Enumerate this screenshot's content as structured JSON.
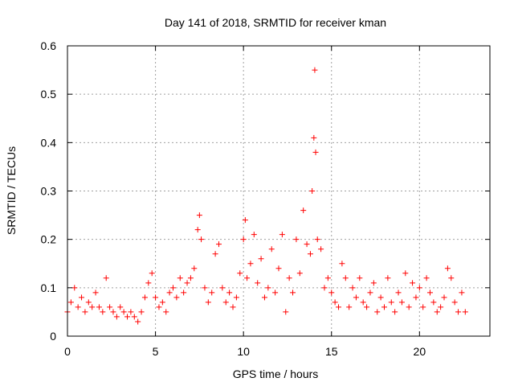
{
  "chart_data": {
    "type": "scatter",
    "title": "Day 141 of 2018, SRMTID for receiver kman",
    "xlabel": "GPS time / hours",
    "ylabel": "SRMTID / TECUs",
    "xlim": [
      0,
      24
    ],
    "ylim": [
      0,
      0.6
    ],
    "x_ticks": [
      "0",
      "5",
      "10",
      "15",
      "20"
    ],
    "x_tick_values": [
      0,
      5,
      10,
      15,
      20
    ],
    "y_ticks": [
      "0",
      "0.1",
      "0.2",
      "0.3",
      "0.4",
      "0.5",
      "0.6"
    ],
    "y_tick_values": [
      0,
      0.1,
      0.2,
      0.3,
      0.4,
      0.5,
      0.6
    ],
    "grid": true,
    "marker": "+",
    "marker_color": "#ff0000",
    "series": [
      {
        "name": "SRMTID",
        "x": [
          0.0,
          0.2,
          0.4,
          0.6,
          0.8,
          1.0,
          1.2,
          1.4,
          1.6,
          1.8,
          2.0,
          2.2,
          2.4,
          2.6,
          2.8,
          3.0,
          3.2,
          3.4,
          3.6,
          3.8,
          4.0,
          4.2,
          4.4,
          4.6,
          4.8,
          5.0,
          5.2,
          5.4,
          5.6,
          5.8,
          6.0,
          6.2,
          6.4,
          6.6,
          6.8,
          7.0,
          7.2,
          7.4,
          7.5,
          7.6,
          7.8,
          8.0,
          8.2,
          8.4,
          8.6,
          8.8,
          9.0,
          9.2,
          9.4,
          9.6,
          9.8,
          10.0,
          10.1,
          10.2,
          10.4,
          10.6,
          10.8,
          11.0,
          11.2,
          11.4,
          11.6,
          11.8,
          12.0,
          12.2,
          12.4,
          12.6,
          12.8,
          13.0,
          13.2,
          13.4,
          13.6,
          13.8,
          13.9,
          14.0,
          14.05,
          14.1,
          14.2,
          14.4,
          14.6,
          14.8,
          15.0,
          15.2,
          15.4,
          15.6,
          15.8,
          16.0,
          16.2,
          16.4,
          16.6,
          16.8,
          17.0,
          17.2,
          17.4,
          17.6,
          17.8,
          18.0,
          18.2,
          18.4,
          18.6,
          18.8,
          19.0,
          19.2,
          19.4,
          19.6,
          19.8,
          20.0,
          20.2,
          20.4,
          20.6,
          20.8,
          21.0,
          21.2,
          21.4,
          21.6,
          21.8,
          22.0,
          22.2,
          22.4,
          22.6
        ],
        "y": [
          0.05,
          0.07,
          0.1,
          0.06,
          0.08,
          0.05,
          0.07,
          0.06,
          0.09,
          0.06,
          0.05,
          0.12,
          0.06,
          0.05,
          0.04,
          0.06,
          0.05,
          0.04,
          0.05,
          0.04,
          0.03,
          0.05,
          0.08,
          0.11,
          0.13,
          0.08,
          0.06,
          0.07,
          0.05,
          0.09,
          0.1,
          0.08,
          0.12,
          0.09,
          0.11,
          0.12,
          0.14,
          0.22,
          0.25,
          0.2,
          0.1,
          0.07,
          0.09,
          0.17,
          0.19,
          0.1,
          0.07,
          0.09,
          0.06,
          0.08,
          0.13,
          0.2,
          0.24,
          0.12,
          0.15,
          0.21,
          0.11,
          0.16,
          0.08,
          0.1,
          0.18,
          0.09,
          0.14,
          0.21,
          0.05,
          0.12,
          0.09,
          0.2,
          0.13,
          0.26,
          0.19,
          0.17,
          0.3,
          0.41,
          0.55,
          0.38,
          0.2,
          0.18,
          0.1,
          0.12,
          0.09,
          0.07,
          0.06,
          0.15,
          0.12,
          0.06,
          0.1,
          0.08,
          0.12,
          0.07,
          0.06,
          0.09,
          0.11,
          0.05,
          0.08,
          0.06,
          0.12,
          0.07,
          0.05,
          0.09,
          0.07,
          0.13,
          0.06,
          0.11,
          0.08,
          0.1,
          0.06,
          0.12,
          0.09,
          0.07,
          0.05,
          0.06,
          0.08,
          0.14,
          0.12,
          0.07,
          0.05,
          0.09,
          0.05
        ]
      }
    ]
  }
}
